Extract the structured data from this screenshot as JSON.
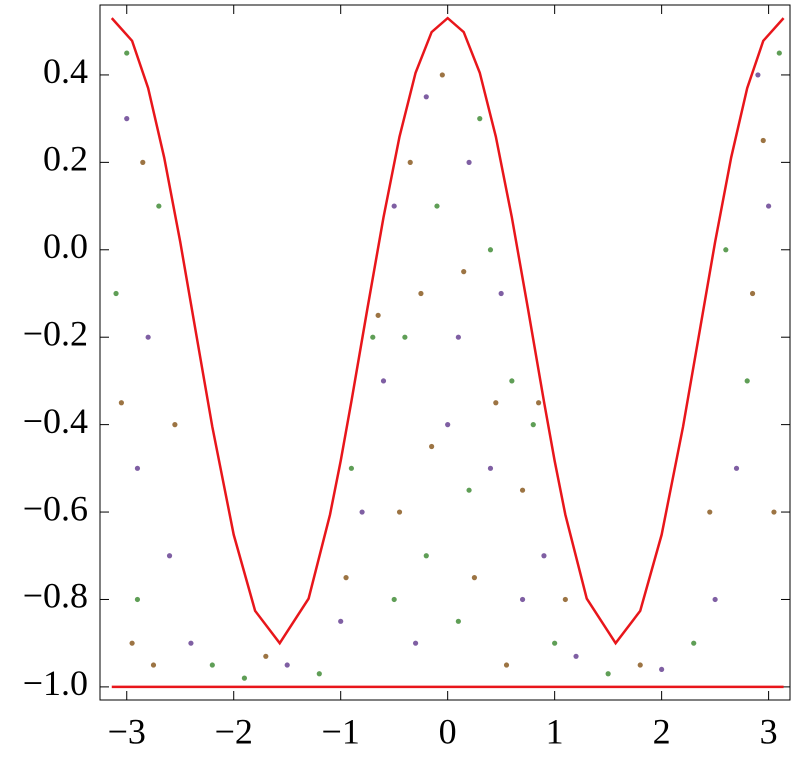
{
  "chart_data": {
    "type": "scatter",
    "xlim": [
      -3.25,
      3.2
    ],
    "ylim": [
      -1.03,
      0.56
    ],
    "xticks": [
      {
        "value": -3,
        "label": "−3"
      },
      {
        "value": -2,
        "label": "−2"
      },
      {
        "value": -1,
        "label": "−1"
      },
      0,
      1,
      2,
      3
    ],
    "yticks": [
      {
        "value": -1.0,
        "label": "−1.0"
      },
      {
        "value": -0.8,
        "label": "−0.8"
      },
      {
        "value": -0.6,
        "label": "−0.6"
      },
      {
        "value": -0.4,
        "label": "−0.4"
      },
      {
        "value": -0.2,
        "label": "−0.2"
      },
      {
        "value": 0.0,
        "label": "0.0"
      },
      0.2,
      0.4
    ],
    "series": [
      {
        "type": "scatter",
        "color": "#7f5fa3",
        "x": [
          -3.0,
          -2.8,
          -2.6,
          -2.4,
          -1.5,
          -0.8,
          -0.5,
          -0.2,
          0.1,
          0.4,
          0.7,
          1.2,
          2.0,
          2.7,
          3.0,
          -0.3,
          0.2,
          0.5,
          -2.9,
          2.9,
          -0.6,
          0.9,
          -1.0,
          2.5,
          0
        ],
        "values": [
          0.3,
          -0.2,
          -0.7,
          -0.9,
          -0.95,
          -0.6,
          0.1,
          0.35,
          -0.2,
          -0.5,
          -0.8,
          -0.93,
          -0.96,
          -0.5,
          0.1,
          -0.9,
          0.2,
          -0.1,
          -0.5,
          0.4,
          -0.3,
          -0.7,
          -0.85,
          -0.8,
          -0.4
        ]
      },
      {
        "type": "scatter",
        "color": "#5f9e56",
        "x": [
          -3.1,
          -2.7,
          -2.9,
          -2.2,
          -1.2,
          -0.9,
          -0.4,
          -0.1,
          0.3,
          0.6,
          0.8,
          1.5,
          2.3,
          2.8,
          3.1,
          -0.2,
          0.1,
          0.4,
          -0.7,
          -3.0,
          2.6,
          1.0,
          -1.9,
          0.2,
          -0.5
        ],
        "values": [
          -0.1,
          0.1,
          -0.8,
          -0.95,
          -0.97,
          -0.5,
          -0.2,
          0.1,
          0.3,
          -0.3,
          -0.4,
          -0.97,
          -0.9,
          -0.3,
          0.45,
          -0.7,
          -0.85,
          0.0,
          -0.2,
          0.45,
          0.0,
          -0.9,
          -0.98,
          -0.55,
          -0.8
        ]
      },
      {
        "type": "scatter",
        "color": "#9c7443",
        "x": [
          -3.05,
          -2.75,
          -2.85,
          -2.55,
          -1.7,
          -0.95,
          -0.65,
          -0.35,
          -0.05,
          0.15,
          0.45,
          0.7,
          1.1,
          1.8,
          2.45,
          2.85,
          3.05,
          -0.15,
          0.25,
          0.55,
          -0.45,
          2.95,
          -2.95,
          0.85,
          -0.25
        ],
        "values": [
          -0.35,
          -0.95,
          0.2,
          -0.4,
          -0.93,
          -0.75,
          -0.15,
          0.2,
          0.4,
          -0.05,
          -0.35,
          -0.55,
          -0.8,
          -0.95,
          -0.6,
          -0.1,
          -0.6,
          -0.45,
          -0.75,
          -0.95,
          -0.6,
          0.25,
          -0.9,
          -0.35,
          -0.1
        ]
      },
      {
        "type": "line",
        "color": "#e8161b",
        "x": [
          -3.14,
          -2.95,
          -2.8,
          -2.65,
          -2.5,
          -2.35,
          -2.2,
          -2.0,
          -1.8,
          -1.57,
          -1.3,
          -1.1,
          -1.0,
          -0.9,
          -0.75,
          -0.6,
          -0.45,
          -0.3,
          -0.15,
          0,
          0.15,
          0.3,
          0.45,
          0.6,
          0.75,
          0.9,
          1.0,
          1.1,
          1.3,
          1.57,
          1.8,
          2.0,
          2.2,
          2.35,
          2.5,
          2.65,
          2.8,
          2.95,
          3.14
        ],
        "values": [
          0.53,
          0.478,
          0.37,
          0.211,
          0.018,
          -0.194,
          -0.405,
          -0.652,
          -0.826,
          -0.9,
          -0.798,
          -0.606,
          -0.483,
          -0.347,
          -0.134,
          0.074,
          0.259,
          0.405,
          0.498,
          0.53,
          0.498,
          0.405,
          0.259,
          0.074,
          -0.134,
          -0.347,
          -0.483,
          -0.606,
          -0.798,
          -0.9,
          -0.826,
          -0.652,
          -0.405,
          -0.194,
          0.018,
          0.211,
          0.37,
          0.478,
          0.53
        ]
      },
      {
        "type": "line",
        "color": "#e8161b",
        "x": [
          -3.14,
          3.14
        ],
        "values": [
          -1,
          -1
        ]
      }
    ]
  }
}
